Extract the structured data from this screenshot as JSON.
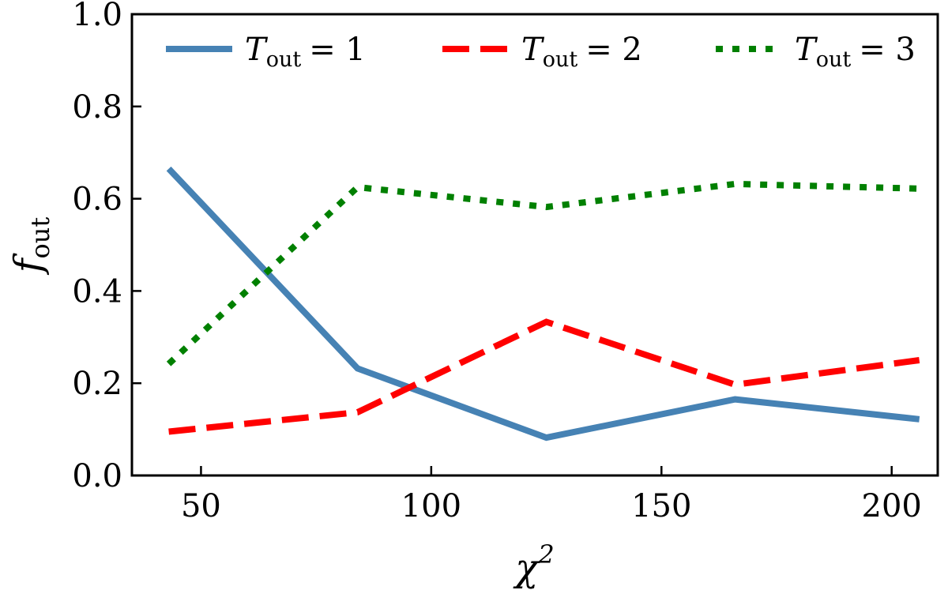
{
  "chart_data": {
    "type": "line",
    "x": [
      43,
      84,
      125,
      166,
      206
    ],
    "series": [
      {
        "name": "T_out = 1",
        "legend_var": "T",
        "legend_sub": "out",
        "legend_rest": "= 1",
        "color": "#4682b4",
        "style": "solid",
        "values": [
          0.665,
          0.232,
          0.082,
          0.165,
          0.122
        ]
      },
      {
        "name": "T_out = 2",
        "legend_var": "T",
        "legend_sub": "out",
        "legend_rest": "= 2",
        "color": "#ff0000",
        "style": "dashed",
        "values": [
          0.095,
          0.137,
          0.333,
          0.197,
          0.25
        ]
      },
      {
        "name": "T_out = 3",
        "legend_var": "T",
        "legend_sub": "out",
        "legend_rest": "= 3",
        "color": "#008000",
        "style": "dotted",
        "values": [
          0.242,
          0.625,
          0.582,
          0.632,
          0.622
        ]
      }
    ],
    "xlabel": "χ",
    "xlabel_sup": "2",
    "ylabel": "f",
    "ylabel_sub": "out",
    "xlim": [
      35,
      210
    ],
    "ylim": [
      0.0,
      1.0
    ],
    "xticks": [
      50,
      100,
      150,
      200
    ],
    "xtick_labels": [
      "50",
      "100",
      "150",
      "200"
    ],
    "yticks": [
      0.0,
      0.2,
      0.4,
      0.6,
      0.8,
      1.0
    ],
    "ytick_labels": [
      "0.0",
      "0.2",
      "0.4",
      "0.6",
      "0.8",
      "1.0"
    ],
    "grid": false,
    "legend_position": "top"
  }
}
